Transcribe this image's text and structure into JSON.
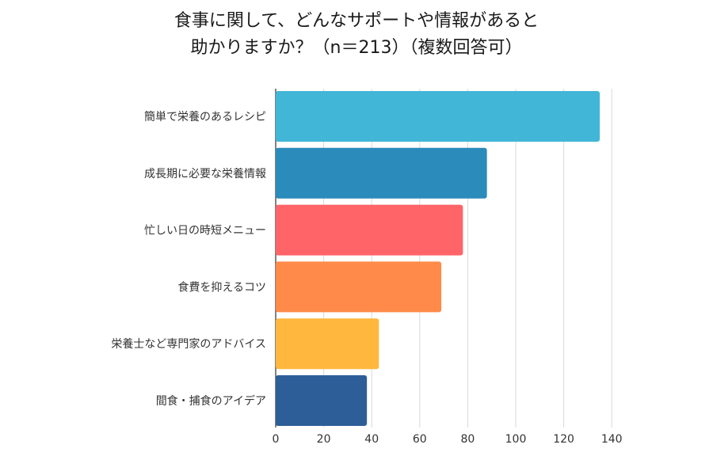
{
  "chart_data": {
    "type": "bar",
    "orientation": "horizontal",
    "title_lines": [
      "食事に関して、どんなサポートや情報があると",
      "助かりますか？（n＝213）（複数回答可）"
    ],
    "categories": [
      "簡単で栄養のあるレシピ",
      "成長期に必要な栄養情報",
      "忙しい日の時短メニュー",
      "食費を抑えるコツ",
      "栄養士など専門家のアドバイス",
      "間食・捕食のアイデア"
    ],
    "values": [
      135,
      88,
      78,
      69,
      43,
      38
    ],
    "colors": [
      "#41b6d6",
      "#2b8bba",
      "#ff6468",
      "#ff8a4a",
      "#ffb83d",
      "#2e5e98"
    ],
    "xlim": [
      0,
      140
    ],
    "xticks": [
      "0",
      "20",
      "40",
      "60",
      "80",
      "100",
      "120",
      "140"
    ],
    "grid": true,
    "legend": "none",
    "xlabel": "",
    "ylabel": ""
  }
}
